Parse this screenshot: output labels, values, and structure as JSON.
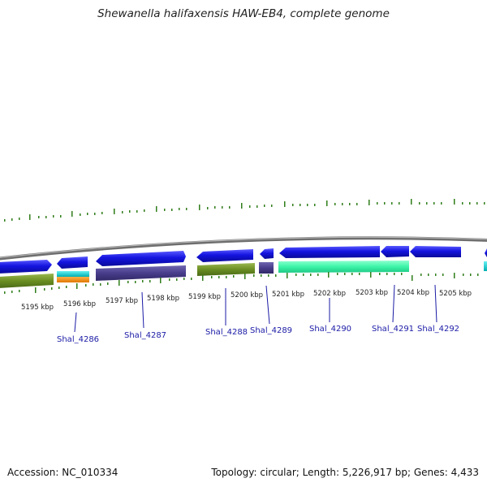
{
  "title": "Shewanella halifaxensis HAW-EB4, complete genome",
  "footer": {
    "accession": "Accession: NC_010334",
    "summary": "Topology: circular; Length: 5,226,917 bp; Genes: 4,433"
  },
  "ruler": {
    "labels": [
      "5195 kbp",
      "5196 kbp",
      "5197 kbp",
      "5198 kbp",
      "5199 kbp",
      "5200 kbp",
      "5201 kbp",
      "5202 kbp",
      "5203 kbp",
      "5204 kbp",
      "5205 kbp"
    ]
  },
  "genes": [
    "Shal_4286",
    "Shal_4287",
    "Shal_4288",
    "Shal_4289",
    "Shal_4290",
    "Shal_4291",
    "Shal_4292"
  ],
  "colors": {
    "cds_strand": "#1414e0",
    "backbone": "#808080",
    "ticks": "#2f7d1a",
    "olive": "#6b8e23",
    "slate": "#483d8b",
    "cyan": "#00ced1",
    "orange": "#ff8c00",
    "aquamarine": "#3cf5a8",
    "leader": "#1a1aa6"
  }
}
